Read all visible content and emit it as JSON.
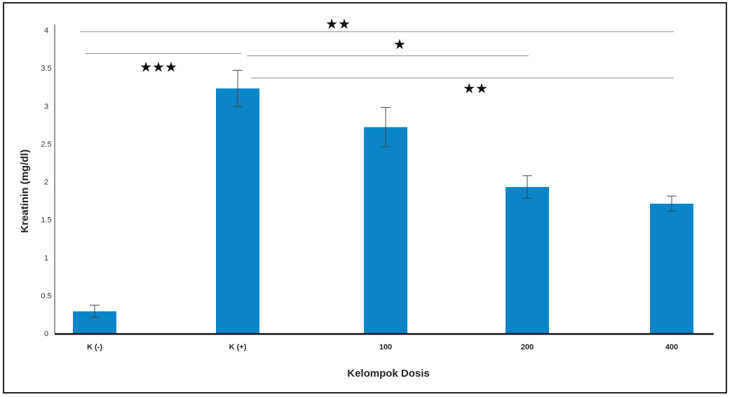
{
  "chart_data": {
    "type": "bar",
    "title": "",
    "xlabel": "Kelompok Dosis",
    "ylabel": "Kreatinin (mg/dl)",
    "categories": [
      "K (-)",
      "K (+)",
      "100",
      "200",
      "400"
    ],
    "values": [
      0.29,
      3.23,
      2.72,
      1.93,
      1.71
    ],
    "errors": [
      0.08,
      0.24,
      0.26,
      0.15,
      0.1
    ],
    "ylim": [
      0,
      4
    ],
    "yticks": [
      "0",
      "0.5",
      "1",
      "1.5",
      "2",
      "2.5",
      "3",
      "3.5",
      "4"
    ],
    "bar_color": "#0a86c8",
    "grid": false,
    "significance": [
      {
        "from": "K (-)",
        "to": "400",
        "y": 3.98,
        "label": "★★"
      },
      {
        "from": "K (-)",
        "to": "K (+)",
        "y": 3.69,
        "label": "★★★"
      },
      {
        "from": "K (+)",
        "to": "200",
        "y": 3.66,
        "label": "★"
      },
      {
        "from": "K (+)",
        "to": "400",
        "y": 3.37,
        "label": "★★"
      }
    ]
  }
}
